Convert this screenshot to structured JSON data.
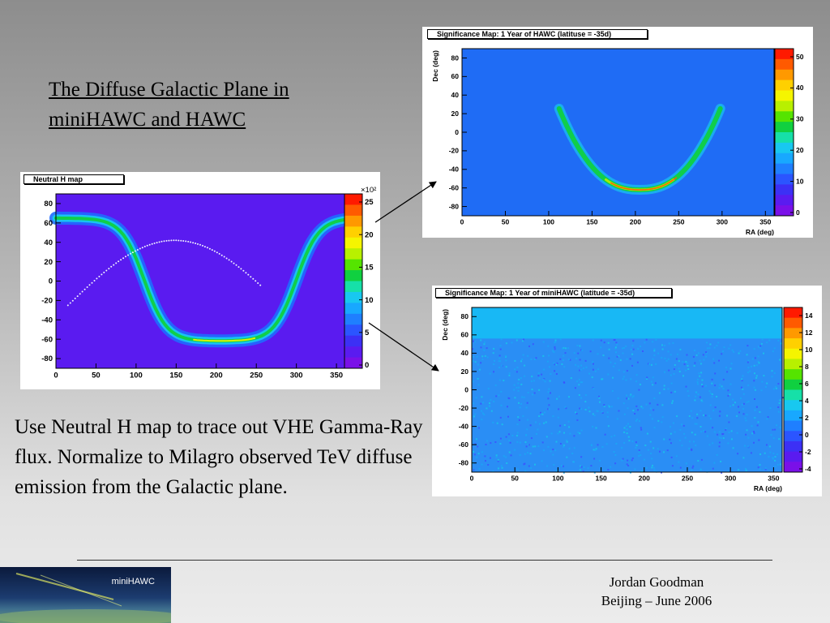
{
  "slide": {
    "title": "The Diffuse Galactic Plane in miniHAWC and HAWC",
    "body": "Use Neutral H map to trace out VHE Gamma-Ray flux. Normalize to Milagro observed TeV diffuse emission from the Galactic plane.",
    "footer_name": "Jordan Goodman",
    "footer_event": "Beijing – June 2006",
    "thumbnail_label": "miniHAWC"
  },
  "maps": [
    {
      "id": "neutral-h",
      "title": "Neutral H map",
      "xlabel": "",
      "ylabel": "",
      "x_ticks": [
        "0",
        "50",
        "100",
        "150",
        "200",
        "250",
        "300",
        "350"
      ],
      "y_ticks": [
        "80",
        "60",
        "40",
        "20",
        "0",
        "-20",
        "-40",
        "-60",
        "-80"
      ],
      "z_ticks": [
        "25",
        "20",
        "15",
        "10",
        "5",
        "0"
      ],
      "z_exponent": "×10²",
      "background": "#5a1bf0",
      "palette": [
        "#ff1a00",
        "#ff5a00",
        "#ff9900",
        "#ffd000",
        "#f5f500",
        "#b8f000",
        "#55e400",
        "#10d040",
        "#16e0a8",
        "#18c8f0",
        "#18a8ff",
        "#1f7fff",
        "#2b55ff",
        "#3c30f5",
        "#5a1bf0",
        "#7a10e8"
      ]
    },
    {
      "id": "hawc",
      "title": "Significance Map: 1 Year of HAWC (latituse = -35d)",
      "xlabel": "RA (deg)",
      "ylabel": "Dec (deg)",
      "x_ticks": [
        "0",
        "50",
        "100",
        "150",
        "200",
        "250",
        "300",
        "350"
      ],
      "y_ticks": [
        "80",
        "60",
        "40",
        "20",
        "0",
        "-20",
        "-40",
        "-60",
        "-80"
      ],
      "z_ticks": [
        "50",
        "40",
        "30",
        "20",
        "10",
        "0"
      ],
      "background": "#1f6cf5",
      "palette": [
        "#ff1a00",
        "#ff5a00",
        "#ff9900",
        "#ffd000",
        "#f5f500",
        "#b8f000",
        "#55e400",
        "#10d040",
        "#16e0a8",
        "#18c8f0",
        "#18a8ff",
        "#1f7fff",
        "#2b55ff",
        "#3c30f5",
        "#5a1bf0",
        "#7a10e8"
      ]
    },
    {
      "id": "minihawc",
      "title": "Significance Map: 1 Year of miniHAWC (latitude = -35d)",
      "xlabel": "RA (deg)",
      "ylabel": "Dec (deg)",
      "x_ticks": [
        "0",
        "50",
        "100",
        "150",
        "200",
        "250",
        "300",
        "350"
      ],
      "y_ticks": [
        "80",
        "60",
        "40",
        "20",
        "0",
        "-20",
        "-40",
        "-60",
        "-80"
      ],
      "z_ticks": [
        "14",
        "12",
        "10",
        "8",
        "6",
        "4",
        "2",
        "0",
        "-2",
        "-4"
      ],
      "background": "#18b8f5",
      "palette": [
        "#ff1a00",
        "#ff5a00",
        "#ff9900",
        "#ffd000",
        "#f5f500",
        "#b8f000",
        "#55e400",
        "#10d040",
        "#16e0a8",
        "#18c8f0",
        "#18a8ff",
        "#1f7fff",
        "#2b55ff",
        "#3c30f5",
        "#5a1bf0",
        "#7a10e8"
      ]
    }
  ]
}
